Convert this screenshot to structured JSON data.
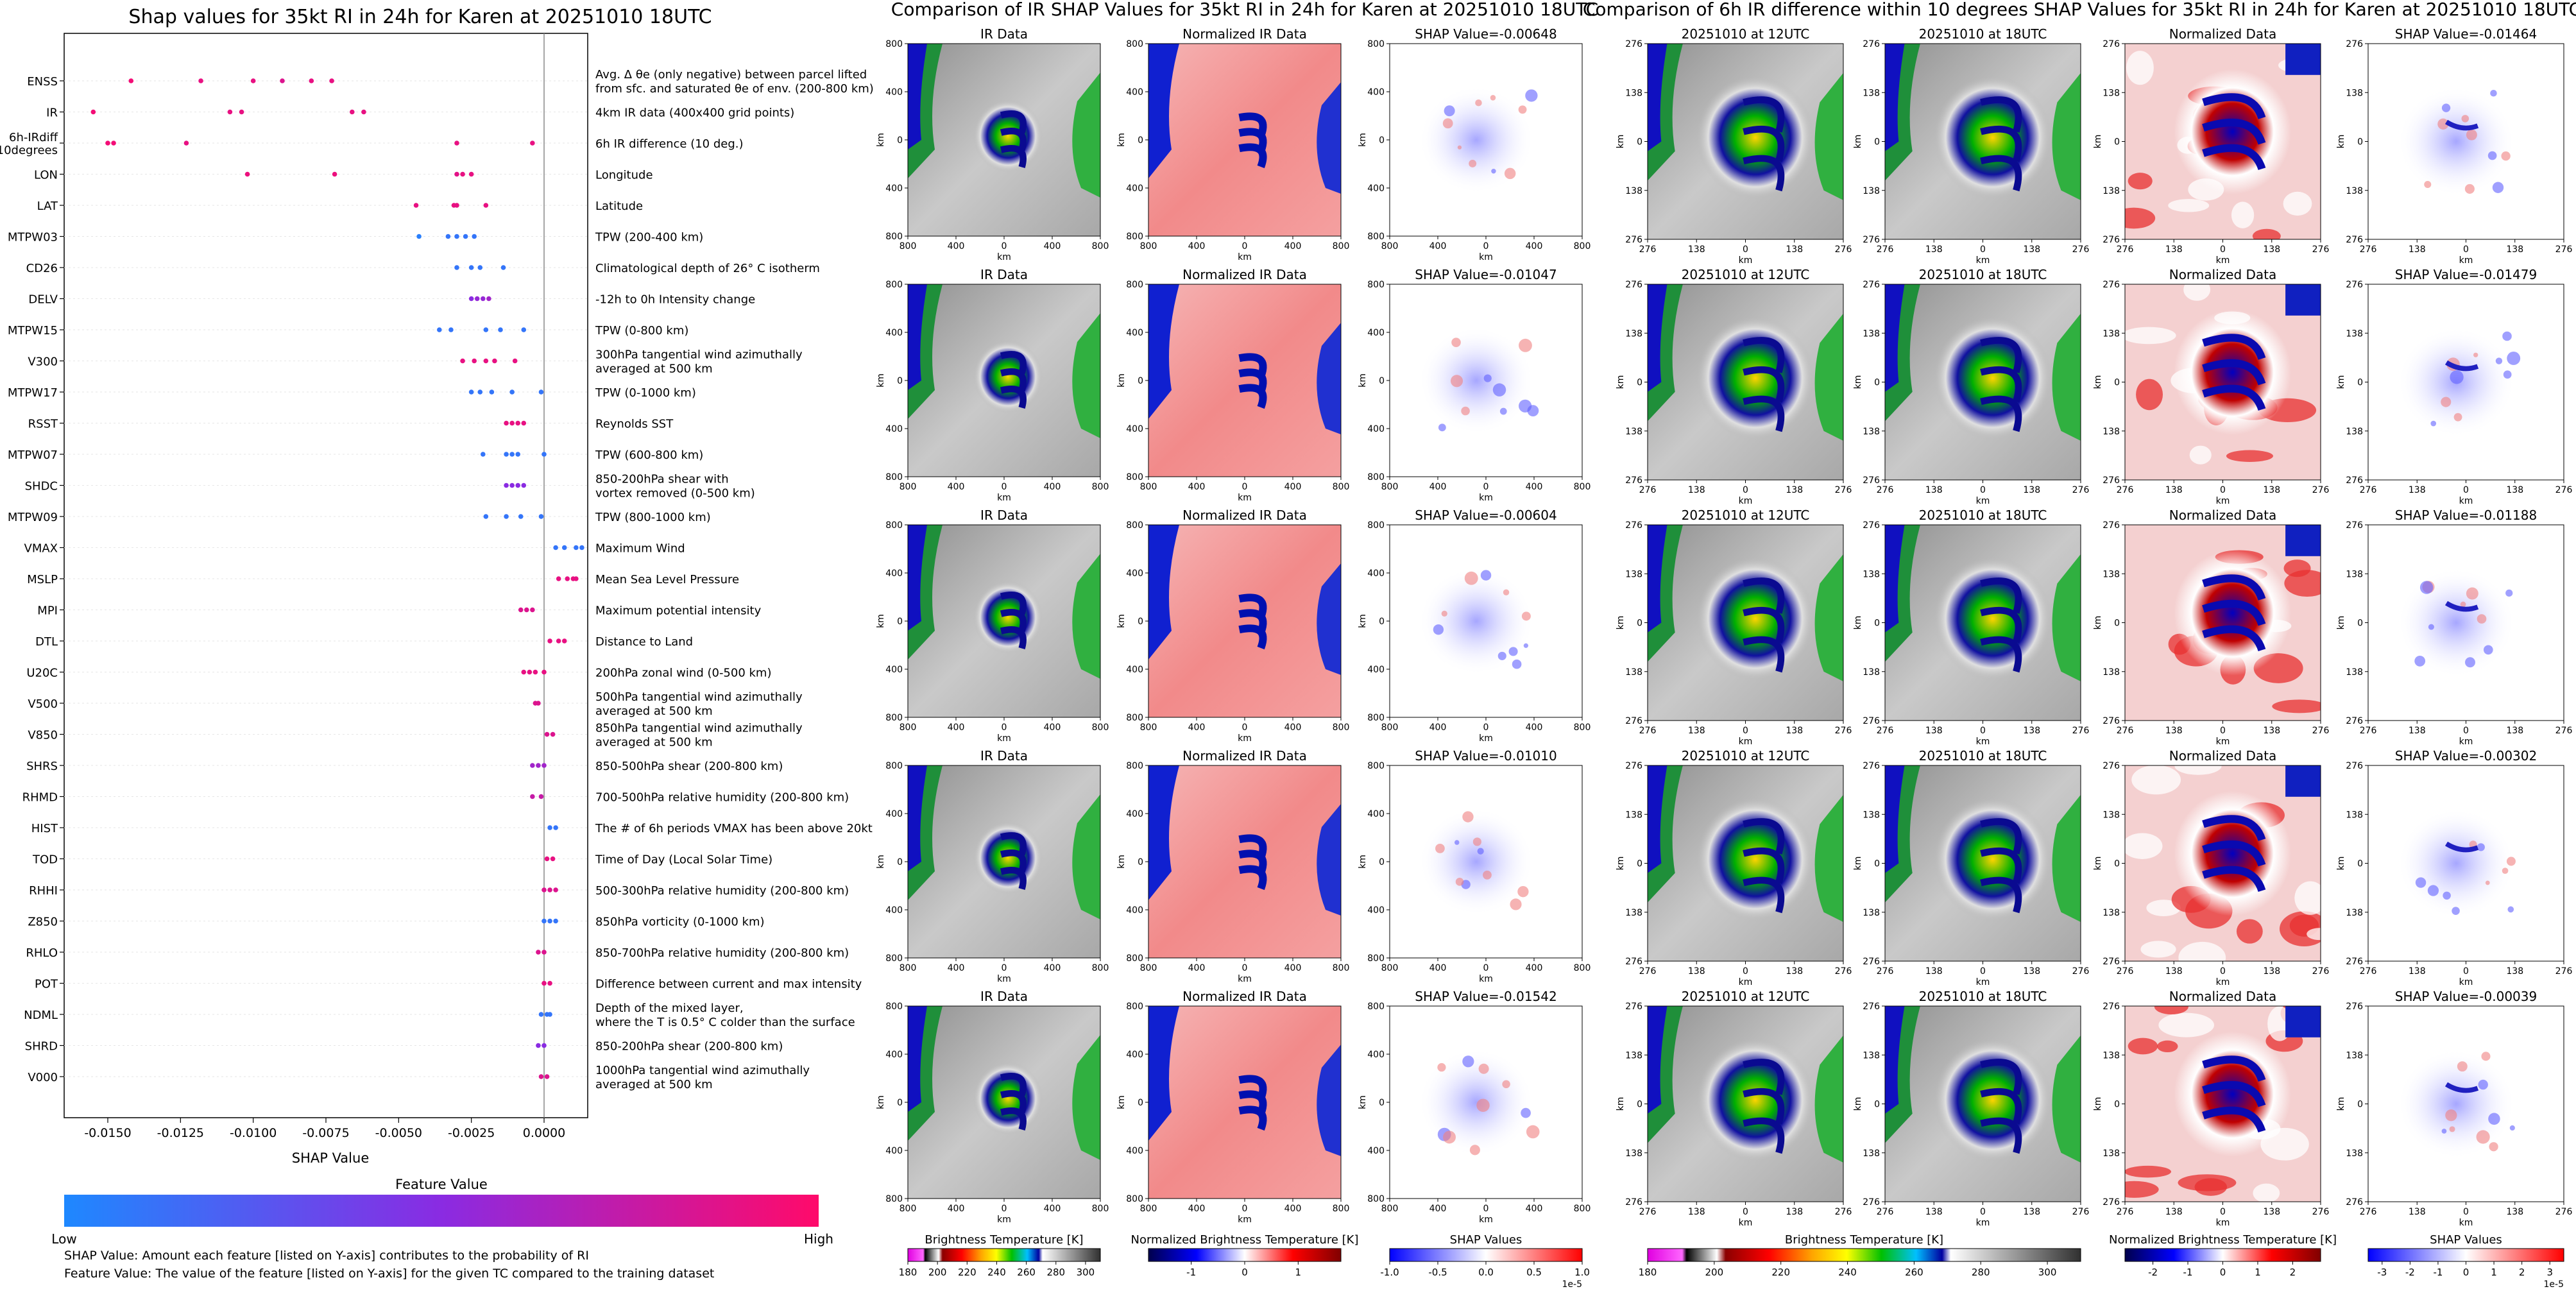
{
  "page": {
    "shap_title": "Shap values for 35kt RI in 24h for Karen at 20251010 18UTC",
    "ir_title": "Comparison of IR SHAP Values for 35kt RI in 24h for Karen at 20251010 18UTC",
    "diff_title": "Comparison of 6h IR difference within 10 degrees SHAP Values for 35kt RI in 24h for Karen at 20251010 18UTC"
  },
  "chart_data": [
    {
      "type": "scatter",
      "title": "Shap values for 35kt RI in 24h for Karen at 20251010 18UTC",
      "xlabel": "SHAP Value",
      "xlim": [
        -0.0165,
        0.0015
      ],
      "xticks": [
        "-0.0150",
        "-0.0125",
        "-0.0100",
        "-0.0075",
        "-0.0050",
        "-0.0025",
        "0.0000"
      ],
      "xtick_values": [
        -0.015,
        -0.0125,
        -0.01,
        -0.0075,
        -0.005,
        -0.0025,
        0.0
      ],
      "colorbar": {
        "title": "Feature Value",
        "low": "Low",
        "high": "High",
        "low_color": "#1e88ff",
        "mid_color": "#8a2be2",
        "high_color": "#ff0a6a"
      },
      "features": [
        {
          "name": "ENSS",
          "desc": [
            "Avg. Δ θe (only negative) between parcel lifted",
            "from sfc. and saturated θe of env. (200-800 km)"
          ],
          "points": [
            [
              -0.0142,
              0.95
            ],
            [
              -0.0118,
              0.9
            ],
            [
              -0.01,
              0.9
            ],
            [
              -0.009,
              0.85
            ],
            [
              -0.008,
              0.9
            ],
            [
              -0.0073,
              0.9
            ]
          ]
        },
        {
          "name": "IR",
          "desc": [
            "4km IR data (400x400 grid points)"
          ],
          "points": [
            [
              -0.0155,
              0.95
            ],
            [
              -0.0108,
              0.9
            ],
            [
              -0.0104,
              0.9
            ],
            [
              -0.0066,
              0.9
            ],
            [
              -0.0062,
              0.9
            ]
          ]
        },
        {
          "name": "6h-IRdiff\n10degrees",
          "desc": [
            "6h IR difference (10 deg.)"
          ],
          "points": [
            [
              -0.015,
              0.95
            ],
            [
              -0.0148,
              0.95
            ],
            [
              -0.0123,
              0.9
            ],
            [
              -0.003,
              0.9
            ],
            [
              -0.0004,
              0.9
            ]
          ]
        },
        {
          "name": "LON",
          "desc": [
            "Longitude"
          ],
          "points": [
            [
              -0.0102,
              0.92
            ],
            [
              -0.0072,
              0.92
            ],
            [
              -0.003,
              0.88
            ],
            [
              -0.0028,
              0.9
            ],
            [
              -0.0025,
              0.9
            ]
          ]
        },
        {
          "name": "LAT",
          "desc": [
            "Latitude"
          ],
          "points": [
            [
              -0.0044,
              0.9
            ],
            [
              -0.0031,
              0.9
            ],
            [
              -0.003,
              0.9
            ],
            [
              -0.002,
              0.9
            ]
          ]
        },
        {
          "name": "MTPW03",
          "desc": [
            "TPW (200-400 km)"
          ],
          "points": [
            [
              -0.0043,
              0.05
            ],
            [
              -0.0033,
              0.1
            ],
            [
              -0.003,
              0.1
            ],
            [
              -0.0027,
              0.1
            ],
            [
              -0.0024,
              0.1
            ]
          ]
        },
        {
          "name": "CD26",
          "desc": [
            "Climatological depth of 26° C isotherm"
          ],
          "points": [
            [
              -0.003,
              0.1
            ],
            [
              -0.0025,
              0.1
            ],
            [
              -0.0022,
              0.1
            ],
            [
              -0.0014,
              0.1
            ]
          ]
        },
        {
          "name": "DELV",
          "desc": [
            "-12h to 0h Intensity change"
          ],
          "points": [
            [
              -0.0025,
              0.5
            ],
            [
              -0.0023,
              0.55
            ],
            [
              -0.0021,
              0.55
            ],
            [
              -0.0019,
              0.6
            ]
          ]
        },
        {
          "name": "MTPW15",
          "desc": [
            "TPW (0-800 km)"
          ],
          "points": [
            [
              -0.0036,
              0.1
            ],
            [
              -0.0032,
              0.1
            ],
            [
              -0.002,
              0.1
            ],
            [
              -0.0015,
              0.1
            ],
            [
              -0.0007,
              0.1
            ]
          ]
        },
        {
          "name": "V300",
          "desc": [
            "300hPa tangential wind azimuthally",
            "averaged at 500 km"
          ],
          "points": [
            [
              -0.0028,
              0.9
            ],
            [
              -0.0024,
              0.9
            ],
            [
              -0.002,
              0.9
            ],
            [
              -0.0017,
              0.9
            ],
            [
              -0.001,
              0.9
            ]
          ]
        },
        {
          "name": "MTPW17",
          "desc": [
            "TPW (0-1000 km)"
          ],
          "points": [
            [
              -0.0025,
              0.1
            ],
            [
              -0.0022,
              0.1
            ],
            [
              -0.0018,
              0.1
            ],
            [
              -0.0011,
              0.1
            ],
            [
              -0.0001,
              0.1
            ]
          ]
        },
        {
          "name": "RSST",
          "desc": [
            "Reynolds SST"
          ],
          "points": [
            [
              -0.0013,
              0.9
            ],
            [
              -0.0011,
              0.9
            ],
            [
              -0.0009,
              0.9
            ],
            [
              -0.0007,
              0.9
            ]
          ]
        },
        {
          "name": "MTPW07",
          "desc": [
            "TPW (600-800 km)"
          ],
          "points": [
            [
              -0.0021,
              0.1
            ],
            [
              -0.0013,
              0.1
            ],
            [
              -0.0011,
              0.1
            ],
            [
              -0.0009,
              0.1
            ],
            [
              0.0,
              0.1
            ]
          ]
        },
        {
          "name": "SHDC",
          "desc": [
            "850-200hPa shear with",
            "vortex removed (0-500 km)"
          ],
          "points": [
            [
              -0.0013,
              0.5
            ],
            [
              -0.0011,
              0.5
            ],
            [
              -0.0009,
              0.5
            ],
            [
              -0.0007,
              0.5
            ]
          ]
        },
        {
          "name": "MTPW09",
          "desc": [
            "TPW (800-1000 km)"
          ],
          "points": [
            [
              -0.002,
              0.1
            ],
            [
              -0.0013,
              0.1
            ],
            [
              -0.0008,
              0.1
            ],
            [
              -0.0001,
              0.1
            ]
          ]
        },
        {
          "name": "VMAX",
          "desc": [
            "Maximum Wind"
          ],
          "points": [
            [
              0.0004,
              0.1
            ],
            [
              0.0007,
              0.1
            ],
            [
              0.0011,
              0.1
            ],
            [
              0.0013,
              0.1
            ]
          ]
        },
        {
          "name": "MSLP",
          "desc": [
            "Mean Sea Level Pressure"
          ],
          "points": [
            [
              0.0005,
              0.9
            ],
            [
              0.0008,
              0.9
            ],
            [
              0.001,
              0.9
            ],
            [
              0.0011,
              0.9
            ]
          ]
        },
        {
          "name": "MPI",
          "desc": [
            "Maximum potential intensity"
          ],
          "points": [
            [
              -0.0008,
              0.85
            ],
            [
              -0.0006,
              0.85
            ],
            [
              -0.0004,
              0.85
            ]
          ]
        },
        {
          "name": "DTL",
          "desc": [
            "Distance to Land"
          ],
          "points": [
            [
              0.0002,
              0.9
            ],
            [
              0.0005,
              0.9
            ],
            [
              0.0007,
              0.9
            ]
          ]
        },
        {
          "name": "U20C",
          "desc": [
            "200hPa zonal wind (0-500 km)"
          ],
          "points": [
            [
              -0.0007,
              0.9
            ],
            [
              -0.0005,
              0.9
            ],
            [
              -0.0003,
              0.9
            ],
            [
              0.0,
              0.9
            ]
          ]
        },
        {
          "name": "V500",
          "desc": [
            "500hPa tangential wind azimuthally",
            "averaged at 500 km"
          ],
          "points": [
            [
              -0.0003,
              0.85
            ],
            [
              -0.0002,
              0.85
            ]
          ]
        },
        {
          "name": "V850",
          "desc": [
            "850hPa tangential wind azimuthally",
            "averaged at 500 km"
          ],
          "points": [
            [
              0.0001,
              0.85
            ],
            [
              0.0003,
              0.85
            ]
          ]
        },
        {
          "name": "SHRS",
          "desc": [
            "850-500hPa shear (200-800 km)"
          ],
          "points": [
            [
              -0.0004,
              0.6
            ],
            [
              -0.0002,
              0.6
            ],
            [
              0.0,
              0.6
            ]
          ]
        },
        {
          "name": "RHMD",
          "desc": [
            "700-500hPa relative humidity (200-800 km)"
          ],
          "points": [
            [
              -0.0004,
              0.75
            ],
            [
              -0.0001,
              0.75
            ]
          ]
        },
        {
          "name": "HIST",
          "desc": [
            "The # of 6h periods VMAX has been above 20kt"
          ],
          "points": [
            [
              0.0002,
              0.1
            ],
            [
              0.0004,
              0.1
            ]
          ]
        },
        {
          "name": "TOD",
          "desc": [
            "Time of Day (Local Solar Time)"
          ],
          "points": [
            [
              0.0001,
              0.9
            ],
            [
              0.0003,
              0.9
            ]
          ]
        },
        {
          "name": "RHHI",
          "desc": [
            "500-300hPa relative humidity (200-800 km)"
          ],
          "points": [
            [
              0.0,
              0.85
            ],
            [
              0.0002,
              0.85
            ],
            [
              0.0004,
              0.85
            ]
          ]
        },
        {
          "name": "Z850",
          "desc": [
            "850hPa vorticity (0-1000 km)"
          ],
          "points": [
            [
              0.0,
              0.1
            ],
            [
              0.0002,
              0.1
            ],
            [
              0.0004,
              0.1
            ]
          ]
        },
        {
          "name": "RHLO",
          "desc": [
            "850-700hPa relative humidity (200-800 km)"
          ],
          "points": [
            [
              -0.0002,
              0.85
            ],
            [
              0.0,
              0.85
            ]
          ]
        },
        {
          "name": "POT",
          "desc": [
            "Difference between current and max intensity"
          ],
          "points": [
            [
              0.0,
              0.9
            ],
            [
              0.0002,
              0.9
            ]
          ]
        },
        {
          "name": "NDML",
          "desc": [
            "Depth of the mixed layer,",
            "where the T is 0.5° C colder than the surface"
          ],
          "points": [
            [
              -0.0001,
              0.1
            ],
            [
              0.0001,
              0.1
            ],
            [
              0.0002,
              0.1
            ]
          ]
        },
        {
          "name": "SHRD",
          "desc": [
            "850-200hPa shear (200-800 km)"
          ],
          "points": [
            [
              -0.0002,
              0.5
            ],
            [
              0.0,
              0.5
            ]
          ]
        },
        {
          "name": "V000",
          "desc": [
            "1000hPa tangential wind azimuthally",
            "averaged at 500 km"
          ],
          "points": [
            [
              -0.0001,
              0.85
            ],
            [
              0.0001,
              0.85
            ]
          ]
        }
      ]
    },
    {
      "type": "heatmap",
      "title": "Comparison of IR SHAP Values for 35kt RI in 24h for Karen at 20251010 18UTC",
      "columns": [
        "IR Data",
        "Normalized IR Data",
        "SHAP Value"
      ],
      "rows_shap_values": [
        "-0.00648",
        "-0.01047",
        "-0.00604",
        "-0.01010",
        "-0.01542"
      ],
      "axis_label": "km",
      "ticks": [
        "800",
        "400",
        "0",
        "400",
        "800"
      ],
      "colorbars": [
        {
          "label": "Brightness Temperature [K]",
          "ticks": [
            "180",
            "200",
            "220",
            "240",
            "260",
            "280",
            "300"
          ],
          "range": [
            180,
            310
          ]
        },
        {
          "label": "Normalized Brightness Temperature [K]",
          "ticks": [
            "-1",
            "0",
            "1"
          ],
          "range": [
            -1.8,
            1.8
          ]
        },
        {
          "label": "SHAP Values",
          "ticks": [
            "-1.0",
            "-0.5",
            "0.0",
            "0.5",
            "1.0"
          ],
          "range": [
            -1.0,
            1.0
          ],
          "scale": "1e-5"
        }
      ]
    },
    {
      "type": "heatmap",
      "title": "Comparison of 6h IR difference within 10 degrees SHAP Values for 35kt RI in 24h for Karen at 20251010 18UTC",
      "columns": [
        "20251010 at 12UTC",
        "20251010 at 18UTC",
        "Normalized Data",
        "SHAP Value"
      ],
      "rows_shap_values": [
        "-0.01464",
        "-0.01479",
        "-0.01188",
        "-0.00302",
        "-0.00039"
      ],
      "axis_label": "km",
      "ticks": [
        "276",
        "138",
        "0",
        "138",
        "276"
      ],
      "colorbars": [
        {
          "label": "Brightness Temperature [K]",
          "ticks": [
            "180",
            "200",
            "220",
            "240",
            "260",
            "280",
            "300"
          ],
          "range": [
            180,
            310
          ]
        },
        {
          "label": "Normalized Brightness Temperature [K]",
          "ticks": [
            "-2",
            "-1",
            "0",
            "1",
            "2"
          ],
          "range": [
            -2.8,
            2.8
          ]
        },
        {
          "label": "SHAP Values",
          "ticks": [
            "-3",
            "-2",
            "-1",
            "0",
            "1",
            "2",
            "3"
          ],
          "range": [
            -3.5,
            3.5
          ],
          "scale": "1e-5"
        }
      ]
    }
  ],
  "footnotes": {
    "line1": "SHAP Value: Amount each feature [listed on Y-axis] contributes to the probability of RI",
    "line2": "Feature Value: The value of the feature [listed on Y-axis] for the given TC compared to the training dataset"
  }
}
